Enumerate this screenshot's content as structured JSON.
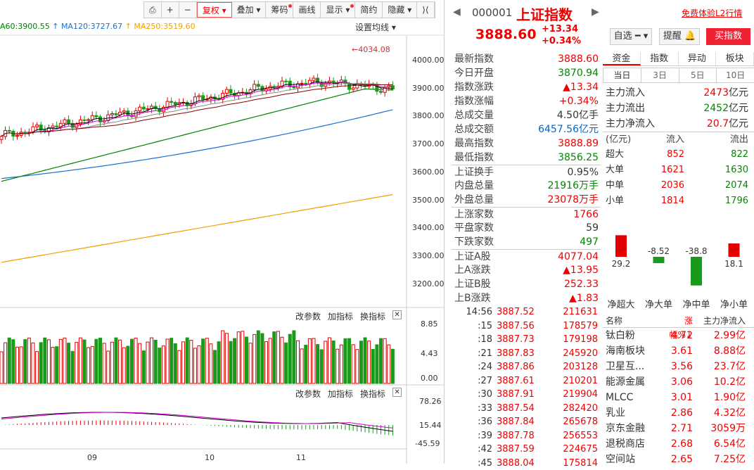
{
  "toolbar": {
    "items": [
      "复权",
      "叠加",
      "筹码",
      "画线",
      "显示",
      "简约",
      "隐藏"
    ]
  },
  "ma_legend": {
    "ma60": "A60:3900.55",
    "ma120": "MA120:3727.67",
    "ma250": "MA250:3519.60",
    "set_ma": "设置均线"
  },
  "price_axis": [
    "4000.00",
    "3900.00",
    "3800.00",
    "3700.00",
    "3600.00",
    "3500.00",
    "3400.00",
    "3300.00",
    "3200.00"
  ],
  "high_marker": "4034.08",
  "volume_axis": [
    "8.85",
    "4.43",
    "0.00"
  ],
  "macd_axis": [
    "78.26",
    "15.44",
    "-45.59"
  ],
  "panel_tools": {
    "change_param": "改参数",
    "add_indicator": "加指标",
    "switch_indicator": "换指标"
  },
  "x_axis": [
    "09",
    "10",
    "11"
  ],
  "header": {
    "code": "000001",
    "name": "上证指数",
    "price": "3888.60",
    "change": "+13.34",
    "change_pct": "+0.34%",
    "free_l2": "免费体验L2行情",
    "watch": "自选",
    "alert": "提醒",
    "buy": "买指数"
  },
  "quote": [
    {
      "label": "最新指数",
      "value": "3888.60",
      "color": "red"
    },
    {
      "label": "今日开盘",
      "value": "3870.94",
      "color": "green"
    },
    {
      "label": "指数涨跌",
      "value": "▲13.34",
      "color": "red"
    },
    {
      "label": "指数涨幅",
      "value": "+0.34%",
      "color": "red"
    },
    {
      "label": "总成交量",
      "value": "4.50亿手",
      "color": "dark"
    },
    {
      "label": "总成交额",
      "value": "6457.56亿元",
      "color": "blue"
    },
    {
      "label": "最高指数",
      "value": "3888.89",
      "color": "red"
    },
    {
      "label": "最低指数",
      "value": "3856.25",
      "color": "green"
    },
    {
      "label": "上证换手",
      "value": "0.95%",
      "color": "dark",
      "sep": true
    },
    {
      "label": "内盘总量",
      "value": "21916万手",
      "color": "green"
    },
    {
      "label": "外盘总量",
      "value": "23078万手",
      "color": "red"
    },
    {
      "label": "上涨家数",
      "value": "1766",
      "color": "red",
      "sep": true
    },
    {
      "label": "平盘家数",
      "value": "59",
      "color": "dark"
    },
    {
      "label": "下跌家数",
      "value": "497",
      "color": "green"
    },
    {
      "label": "上证A股",
      "value": "4077.04",
      "color": "red",
      "sep": true
    },
    {
      "label": "上A涨跌",
      "value": "▲13.95",
      "color": "red"
    },
    {
      "label": "上证B股",
      "value": "252.33",
      "color": "red"
    },
    {
      "label": "上B涨跌",
      "value": "▲1.83",
      "color": "red"
    }
  ],
  "ticks": [
    {
      "t": "14:56",
      "p": "3887.52",
      "v": "211631"
    },
    {
      "t": ":15",
      "p": "3887.56",
      "v": "178579"
    },
    {
      "t": ":18",
      "p": "3887.73",
      "v": "179198"
    },
    {
      "t": ":21",
      "p": "3887.83",
      "v": "245920"
    },
    {
      "t": ":24",
      "p": "3887.86",
      "v": "203128"
    },
    {
      "t": ":27",
      "p": "3887.61",
      "v": "210201"
    },
    {
      "t": ":30",
      "p": "3887.91",
      "v": "219904"
    },
    {
      "t": ":33",
      "p": "3887.54",
      "v": "282420"
    },
    {
      "t": ":36",
      "p": "3887.84",
      "v": "265678"
    },
    {
      "t": ":39",
      "p": "3887.78",
      "v": "256553"
    },
    {
      "t": ":42",
      "p": "3887.59",
      "v": "224675"
    },
    {
      "t": ":45",
      "p": "3888.04",
      "v": "175814"
    }
  ],
  "flow": {
    "tabs": [
      "资金",
      "指数",
      "异动",
      "板块"
    ],
    "subtabs": [
      "当日",
      "3日",
      "5日",
      "10日"
    ],
    "rows": [
      {
        "label": "主力流入",
        "value": "2473",
        "unit": "亿元",
        "color": "red"
      },
      {
        "label": "主力流出",
        "value": "2452",
        "unit": "亿元",
        "color": "green"
      },
      {
        "label": "主力净流入",
        "value": "20.7",
        "unit": "亿元",
        "color": "red"
      }
    ],
    "level_header": [
      "(亿元)",
      "流入",
      "流出"
    ],
    "levels": [
      {
        "label": "超大",
        "in": "852",
        "out": "822"
      },
      {
        "label": "大单",
        "in": "1621",
        "out": "1630"
      },
      {
        "label": "中单",
        "in": "2036",
        "out": "2074"
      },
      {
        "label": "小单",
        "in": "1814",
        "out": "1796"
      }
    ],
    "net": [
      {
        "label": "净超大",
        "value": 29.2,
        "text": "29.2"
      },
      {
        "label": "净大单",
        "value": -8.52,
        "text": "-8.52"
      },
      {
        "label": "净中单",
        "value": -38.8,
        "text": "-38.8"
      },
      {
        "label": "净小单",
        "value": 18.1,
        "text": "18.1"
      }
    ]
  },
  "sectors": {
    "header": [
      "名称",
      "涨幅%↓",
      "主力净流入"
    ],
    "rows": [
      {
        "name": "钛白粉",
        "pct": "4.72",
        "flow": "2.99亿"
      },
      {
        "name": "海南板块",
        "pct": "3.61",
        "flow": "8.88亿"
      },
      {
        "name": "卫星互...",
        "pct": "3.56",
        "flow": "23.7亿"
      },
      {
        "name": "能源金属",
        "pct": "3.06",
        "flow": "10.2亿"
      },
      {
        "name": "MLCC",
        "pct": "3.01",
        "flow": "1.90亿"
      },
      {
        "name": "乳业",
        "pct": "2.86",
        "flow": "4.32亿"
      },
      {
        "name": "京东金融",
        "pct": "2.71",
        "flow": "3059万"
      },
      {
        "name": "退税商店",
        "pct": "2.68",
        "flow": "6.54亿"
      },
      {
        "name": "空间站",
        "pct": "2.65",
        "flow": "7.25亿"
      }
    ]
  },
  "colors": {
    "up": "#e00000",
    "down": "#008000",
    "ma250": "#f0a000",
    "ma120": "#1a6fd0",
    "ma60": "#008000"
  }
}
